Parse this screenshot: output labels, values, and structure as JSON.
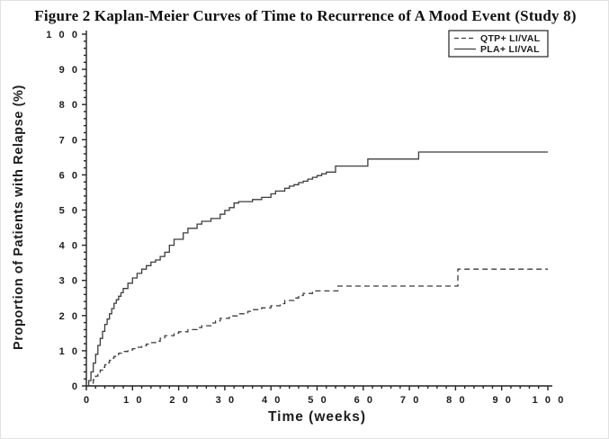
{
  "page": {
    "title": "Figure 2 Kaplan-Meier Curves of Time to Recurrence of A Mood Event (Study 8)"
  },
  "chart_data": {
    "type": "line",
    "subtype": "kaplan-meier-step",
    "title": "Figure 2 Kaplan-Meier Curves of Time to Recurrence of A Mood Event (Study 8)",
    "xlabel": "Time (weeks)",
    "ylabel": "Proportion of Patients with Relapse (%)",
    "xlim": [
      0,
      100
    ],
    "ylim": [
      0,
      100
    ],
    "x_major_tick_step": 10,
    "y_major_tick_step": 10,
    "minor_tick_step": 2,
    "grid": false,
    "legend_position": "top-right",
    "legend_border": true,
    "axis_color": "#222222",
    "curve_color": "#3c3c3c",
    "series": [
      {
        "name": "QTP+ LI/VAL",
        "style": "dashed",
        "points": [
          [
            0,
            0
          ],
          [
            1,
            0.8
          ],
          [
            1.5,
            1.8
          ],
          [
            2,
            2.8
          ],
          [
            2.5,
            3.6
          ],
          [
            3,
            4.5
          ],
          [
            3.5,
            5.3
          ],
          [
            4,
            6
          ],
          [
            4.5,
            6.6
          ],
          [
            5,
            7.3
          ],
          [
            5.5,
            7.9
          ],
          [
            6,
            8.4
          ],
          [
            6.5,
            8.9
          ],
          [
            7,
            9.3
          ],
          [
            8,
            9.8
          ],
          [
            9,
            10.2
          ],
          [
            10,
            10.6
          ],
          [
            11,
            11
          ],
          [
            12,
            11.4
          ],
          [
            13,
            11.9
          ],
          [
            14,
            12.3
          ],
          [
            15,
            12.7
          ],
          [
            16,
            13.5
          ],
          [
            17,
            14.3
          ],
          [
            19,
            15
          ],
          [
            20,
            15.4
          ],
          [
            22,
            16
          ],
          [
            24,
            16.6
          ],
          [
            25,
            17.1
          ],
          [
            27,
            17.9
          ],
          [
            28,
            18.5
          ],
          [
            29,
            19.2
          ],
          [
            31,
            19.9
          ],
          [
            33,
            20.5
          ],
          [
            35,
            21.2
          ],
          [
            36,
            21.7
          ],
          [
            38,
            22.2
          ],
          [
            40,
            22.8
          ],
          [
            42,
            23.4
          ],
          [
            43,
            24.3
          ],
          [
            45,
            25
          ],
          [
            46,
            25.7
          ],
          [
            47,
            26.3
          ],
          [
            49,
            27
          ],
          [
            54.5,
            28.4
          ],
          [
            80.5,
            33.2
          ],
          [
            100,
            33.2
          ]
        ]
      },
      {
        "name": "PLA+ LI/VAL",
        "style": "solid",
        "points": [
          [
            0,
            0
          ],
          [
            0.5,
            1.5
          ],
          [
            1,
            4
          ],
          [
            1.5,
            6.5
          ],
          [
            2,
            9
          ],
          [
            2.5,
            11.5
          ],
          [
            3,
            13.5
          ],
          [
            3.5,
            15.5
          ],
          [
            4,
            17.5
          ],
          [
            4.5,
            19
          ],
          [
            5,
            20.5
          ],
          [
            5.5,
            22
          ],
          [
            6,
            23.5
          ],
          [
            6.5,
            24.5
          ],
          [
            7,
            25.5
          ],
          [
            7.5,
            26.5
          ],
          [
            8,
            27.7
          ],
          [
            9,
            29.2
          ],
          [
            10,
            30.7
          ],
          [
            11,
            32
          ],
          [
            12,
            33.2
          ],
          [
            13,
            34.2
          ],
          [
            14,
            35.2
          ],
          [
            15,
            35.8
          ],
          [
            16,
            36.8
          ],
          [
            17,
            38
          ],
          [
            18,
            40
          ],
          [
            19,
            41.7
          ],
          [
            21,
            43.5
          ],
          [
            22,
            44.8
          ],
          [
            24,
            46
          ],
          [
            25,
            46.8
          ],
          [
            27,
            47.6
          ],
          [
            29,
            48.8
          ],
          [
            30,
            49.9
          ],
          [
            31,
            50.7
          ],
          [
            32,
            52
          ],
          [
            33,
            52.4
          ],
          [
            36,
            53
          ],
          [
            38,
            53.6
          ],
          [
            40,
            54.6
          ],
          [
            41,
            55.4
          ],
          [
            43,
            56.2
          ],
          [
            44,
            56.8
          ],
          [
            45,
            57.2
          ],
          [
            46,
            57.8
          ],
          [
            47,
            58.2
          ],
          [
            48,
            58.8
          ],
          [
            49,
            59.3
          ],
          [
            50,
            59.8
          ],
          [
            51,
            60.3
          ],
          [
            52,
            60.8
          ],
          [
            54,
            62.5
          ],
          [
            61,
            64.5
          ],
          [
            72,
            66.5
          ],
          [
            100,
            66.5
          ]
        ]
      }
    ]
  }
}
